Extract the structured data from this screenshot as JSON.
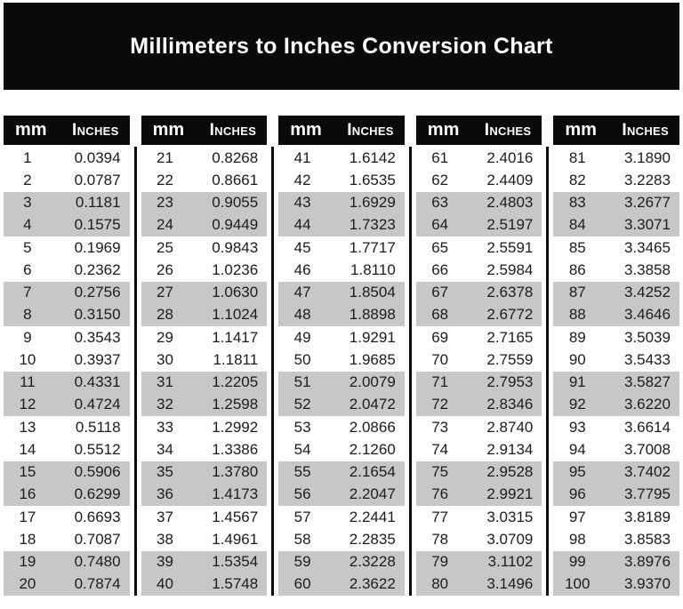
{
  "title": "Millimeters to Inches Conversion Chart",
  "colors": {
    "band_black": "#0a0a0a",
    "stripe_gray": "#c7c7c7",
    "page_background": "#fdfdfd",
    "header_text": "#ffffff"
  },
  "table": {
    "header_mm": "mm",
    "header_inches": "Inches",
    "group_size": 20,
    "columns_count": 5
  },
  "chart_data": {
    "type": "table",
    "title": "Millimeters to Inches Conversion Chart",
    "columns": [
      "mm",
      "Inches"
    ],
    "layout": "5 side-by-side sub-tables of 20 rows, paired rows shaded gray",
    "mm": [
      1,
      2,
      3,
      4,
      5,
      6,
      7,
      8,
      9,
      10,
      11,
      12,
      13,
      14,
      15,
      16,
      17,
      18,
      19,
      20,
      21,
      22,
      23,
      24,
      25,
      26,
      27,
      28,
      29,
      30,
      31,
      32,
      33,
      34,
      35,
      36,
      37,
      38,
      39,
      40,
      41,
      42,
      43,
      44,
      45,
      46,
      47,
      48,
      49,
      50,
      51,
      52,
      53,
      54,
      55,
      56,
      57,
      58,
      59,
      60,
      61,
      62,
      63,
      64,
      65,
      66,
      67,
      68,
      69,
      70,
      71,
      72,
      73,
      74,
      75,
      76,
      77,
      78,
      79,
      80,
      81,
      82,
      83,
      84,
      85,
      86,
      87,
      88,
      89,
      90,
      91,
      92,
      93,
      94,
      95,
      96,
      97,
      98,
      99,
      100
    ],
    "inches": [
      "0.0394",
      "0.0787",
      "0.1181",
      "0.1575",
      "0.1969",
      "0.2362",
      "0.2756",
      "0.3150",
      "0.3543",
      "0.3937",
      "0.4331",
      "0.4724",
      "0.5118",
      "0.5512",
      "0.5906",
      "0.6299",
      "0.6693",
      "0.7087",
      "0.7480",
      "0.7874",
      "0.8268",
      "0.8661",
      "0.9055",
      "0.9449",
      "0.9843",
      "1.0236",
      "1.0630",
      "1.1024",
      "1.1417",
      "1.1811",
      "1.2205",
      "1.2598",
      "1.2992",
      "1.3386",
      "1.3780",
      "1.4173",
      "1.4567",
      "1.4961",
      "1.5354",
      "1.5748",
      "1.6142",
      "1.6535",
      "1.6929",
      "1.7323",
      "1.7717",
      "1.8110",
      "1.8504",
      "1.8898",
      "1.9291",
      "1.9685",
      "2.0079",
      "2.0472",
      "2.0866",
      "2.1260",
      "2.1654",
      "2.2047",
      "2.2441",
      "2.2835",
      "2.3228",
      "2.3622",
      "2.4016",
      "2.4409",
      "2.4803",
      "2.5197",
      "2.5591",
      "2.5984",
      "2.6378",
      "2.6772",
      "2.7165",
      "2.7559",
      "2.7953",
      "2.8346",
      "2.8740",
      "2.9134",
      "2.9528",
      "2.9921",
      "3.0315",
      "3.0709",
      "3.1102",
      "3.1496",
      "3.1890",
      "3.2283",
      "3.2677",
      "3.3071",
      "3.3465",
      "3.3858",
      "3.4252",
      "3.4646",
      "3.5039",
      "3.5433",
      "3.5827",
      "3.6220",
      "3.6614",
      "3.7008",
      "3.7402",
      "3.7795",
      "3.8189",
      "3.8583",
      "3.8976",
      "3.9370"
    ]
  }
}
